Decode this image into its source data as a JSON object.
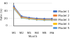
{
  "chart_data": {
    "type": "line",
    "x_label": "Month",
    "y_label": "Rate (%)",
    "categories": [
      "M1",
      "M2",
      "M3",
      "M4",
      "M5",
      "M6"
    ],
    "series": [
      {
        "name": "Model 1",
        "color": "#4472c4",
        "values": [
          52,
          26,
          22,
          20,
          19,
          19
        ]
      },
      {
        "name": "Model 2",
        "color": "#ed7d31",
        "values": [
          50,
          24,
          21,
          19,
          18,
          18
        ]
      },
      {
        "name": "Model 3",
        "color": "#a5a5a5",
        "values": [
          48,
          23,
          20,
          18,
          17,
          17
        ]
      },
      {
        "name": "Model 4",
        "color": "#ffc000",
        "values": [
          47,
          22,
          19,
          17,
          16,
          16
        ]
      },
      {
        "name": "Model 5",
        "color": "#5b9bd5",
        "values": [
          45,
          21,
          18,
          16,
          15,
          15
        ]
      }
    ],
    "ylim": [
      0,
      60
    ],
    "yticks": [
      0,
      20,
      40,
      60
    ],
    "grid": true,
    "legend": "right",
    "marker": "circle"
  }
}
